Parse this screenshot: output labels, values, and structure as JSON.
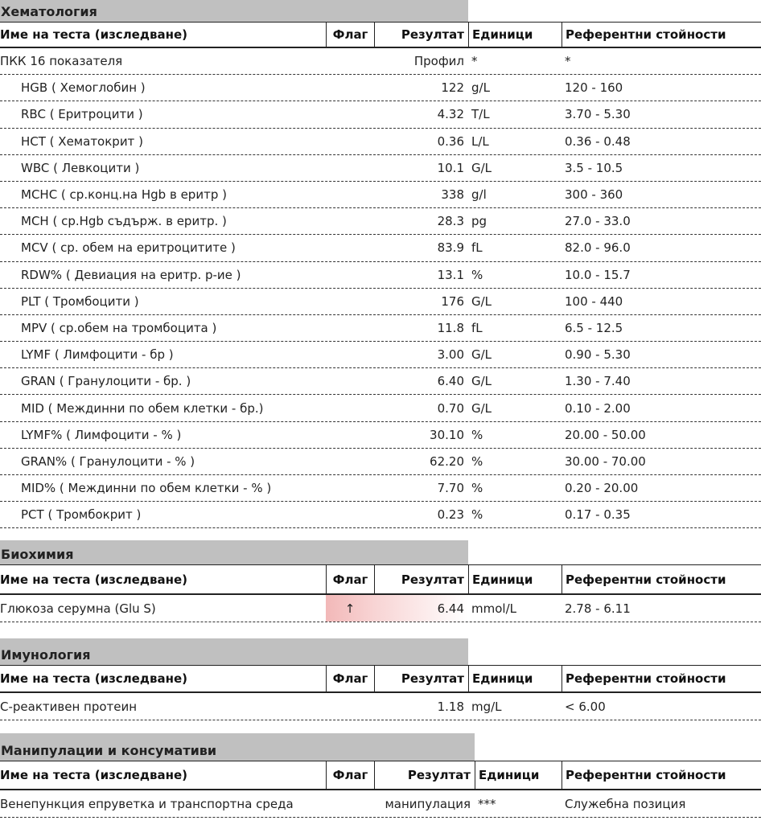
{
  "sections": [
    {
      "title": "Хематология",
      "columns": [
        "Име на теста (изследване)",
        "Флаг",
        "Резултат",
        "Единици",
        "Референтни стойности"
      ],
      "rows": [
        {
          "name": "ПКК 16 показателя",
          "result": "Профил",
          "unit": "*",
          "ref": "*"
        },
        {
          "name": "HGB ( Хемоглобин )",
          "result": "122",
          "unit": "g/L",
          "ref": "120 - 160"
        },
        {
          "name": "RBC ( Еритроцити )",
          "result": "4.32",
          "unit": "T/L",
          "ref": "3.70 - 5.30"
        },
        {
          "name": "HCT ( Хематокрит )",
          "result": "0.36",
          "unit": "L/L",
          "ref": "0.36 - 0.48"
        },
        {
          "name": "WBC ( Левкоцити )",
          "result": "10.1",
          "unit": "G/L",
          "ref": "3.5 - 10.5"
        },
        {
          "name": "MCHC ( ср.конц.на Hgb в еритр )",
          "result": "338",
          "unit": "g/l",
          "ref": "300 - 360"
        },
        {
          "name": "MCH ( ср.Hgb съдърж. в еритр. )",
          "result": "28.3",
          "unit": "pg",
          "ref": "27.0 - 33.0"
        },
        {
          "name": "MCV ( ср. обем на еритроцитите )",
          "result": "83.9",
          "unit": "fL",
          "ref": "82.0 - 96.0"
        },
        {
          "name": "RDW% ( Девиация на еритр. р-ие )",
          "result": "13.1",
          "unit": "%",
          "ref": "10.0 - 15.7"
        },
        {
          "name": "PLT ( Тромбоцити )",
          "result": "176",
          "unit": "G/L",
          "ref": "100 - 440"
        },
        {
          "name": "MPV ( ср.обем на тромбоцита )",
          "result": "11.8",
          "unit": "fL",
          "ref": "6.5 - 12.5"
        },
        {
          "name": "LYMF ( Лимфоцити - бр )",
          "result": "3.00",
          "unit": "G/L",
          "ref": "0.90 - 5.30"
        },
        {
          "name": "GRAN ( Гранулоцити - бр. )",
          "result": "6.40",
          "unit": "G/L",
          "ref": "1.30 - 7.40"
        },
        {
          "name": "MID ( Междинни по обем клетки - бр.)",
          "result": "0.70",
          "unit": "G/L",
          "ref": "0.10 - 2.00"
        },
        {
          "name": "LYMF% ( Лимфоцити - % )",
          "result": "30.10",
          "unit": "%",
          "ref": "20.00 - 50.00"
        },
        {
          "name": "GRAN% ( Гранулоцити - % )",
          "result": "62.20",
          "unit": "%",
          "ref": "30.00 - 70.00"
        },
        {
          "name": "MID% ( Междинни по обем клетки - % )",
          "result": "7.70",
          "unit": "%",
          "ref": "0.20 - 20.00"
        },
        {
          "name": "PCT ( Тромбокрит )",
          "result": "0.23",
          "unit": "%",
          "ref": "0.17 - 0.35"
        }
      ]
    },
    {
      "title": "Биохимия",
      "columns": [
        "Име на теста (изследване)",
        "Флаг",
        "Резултат",
        "Единици",
        "Референтни стойности"
      ],
      "rows": [
        {
          "name": "Глюкоза серумна (Glu S)",
          "flag": "↑",
          "result": "6.44",
          "unit": "mmol/L",
          "ref": "2.78 - 6.11"
        }
      ]
    },
    {
      "title": "Имунология",
      "columns": [
        "Име на теста (изследване)",
        "Флаг",
        "Резултат",
        "Единици",
        "Референтни стойности"
      ],
      "rows": [
        {
          "name": "С-реактивен протеин",
          "result": "1.18",
          "unit": "mg/L",
          "ref": "< 6.00"
        }
      ]
    },
    {
      "title": "Манипулации и консумативи",
      "columns": [
        "Име на теста (изследване)",
        "Флаг",
        "Резултат",
        "Единици",
        "Референтни стойности"
      ],
      "rows": [
        {
          "name": "Венепункция епруветка и транспортна среда",
          "result": "манипулация",
          "unit": "***",
          "ref": "Служебна позиция"
        }
      ]
    }
  ]
}
